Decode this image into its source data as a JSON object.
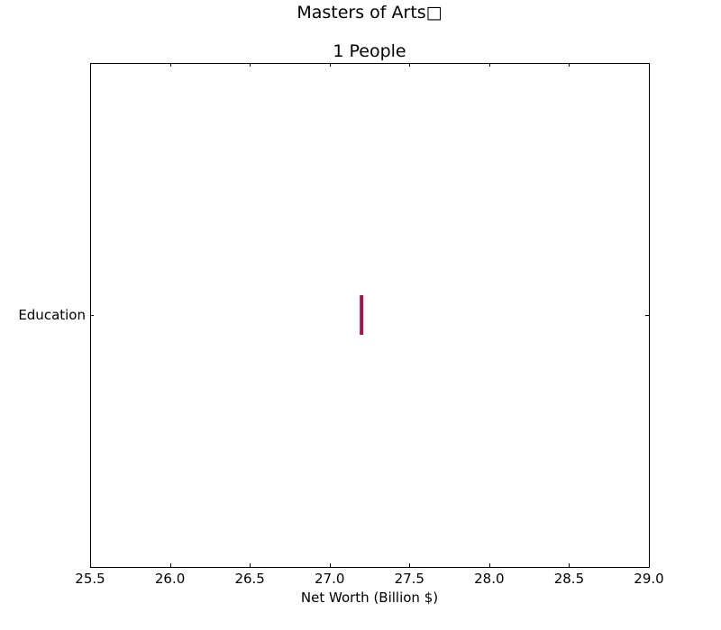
{
  "chart_data": {
    "type": "boxplot",
    "title": "Masters of Arts□",
    "subtitle": "1 People",
    "xlabel": "Net Worth (Billion $)",
    "ylabel": "",
    "xlim": [
      25.5,
      29.0
    ],
    "xticks": [
      25.5,
      26.0,
      26.5,
      27.0,
      27.5,
      28.0,
      28.5,
      29.0
    ],
    "xtick_labels": [
      "25.5",
      "26.0",
      "26.5",
      "27.0",
      "27.5",
      "28.0",
      "28.5",
      "29.0"
    ],
    "categories": [
      "Education"
    ],
    "series": [
      {
        "category": "Education",
        "values": [
          27.2
        ],
        "min": 27.2,
        "q1": 27.2,
        "median": 27.2,
        "q3": 27.2,
        "max": 27.2
      }
    ],
    "box_color": "#c0134c",
    "median_color": "#8b1a4a",
    "grid": false,
    "legend": "none"
  }
}
